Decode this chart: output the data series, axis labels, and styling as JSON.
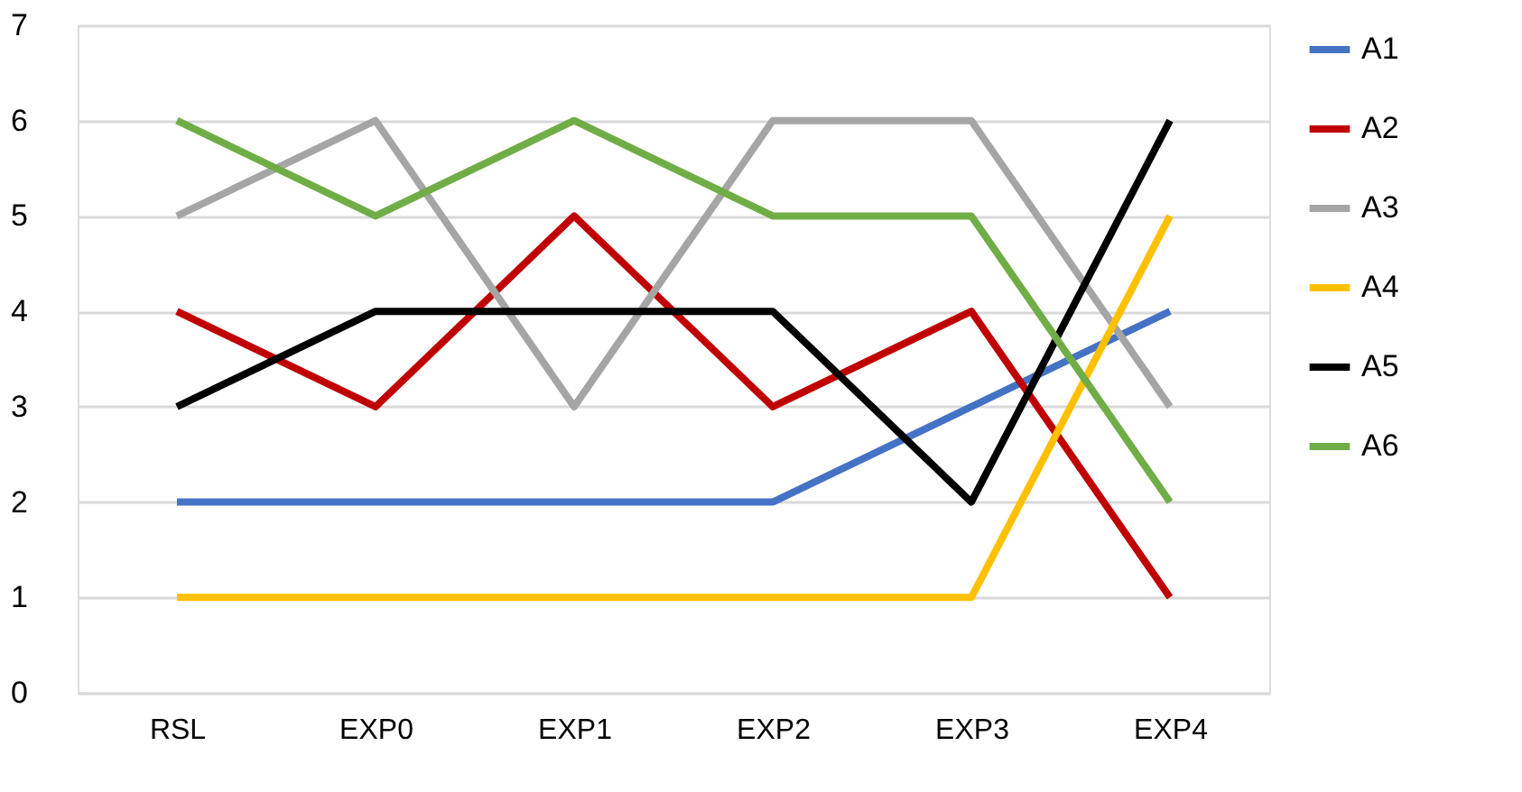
{
  "chart_data": {
    "type": "line",
    "categories": [
      "RSL",
      "EXP0",
      "EXP1",
      "EXP2",
      "EXP3",
      "EXP4"
    ],
    "series": [
      {
        "name": "A1",
        "color": "#4472c4",
        "values": [
          2,
          2,
          2,
          2,
          3,
          4
        ]
      },
      {
        "name": "A2",
        "color": "#c00000",
        "values": [
          4,
          3,
          5,
          3,
          4,
          1
        ]
      },
      {
        "name": "A3",
        "color": "#a5a5a5",
        "values": [
          5,
          6,
          3,
          6,
          6,
          3
        ]
      },
      {
        "name": "A4",
        "color": "#ffc000",
        "values": [
          1,
          1,
          1,
          1,
          1,
          5
        ]
      },
      {
        "name": "A5",
        "color": "#000000",
        "values": [
          3,
          4,
          4,
          4,
          2,
          6
        ]
      },
      {
        "name": "A6",
        "color": "#70ad47",
        "values": [
          6,
          5,
          6,
          5,
          5,
          2
        ]
      }
    ],
    "ylim": [
      0,
      7
    ],
    "yticks": [
      0,
      1,
      2,
      3,
      4,
      5,
      6,
      7
    ],
    "grid": "y",
    "legend": "right",
    "marker": "none",
    "line_style": "solid"
  }
}
